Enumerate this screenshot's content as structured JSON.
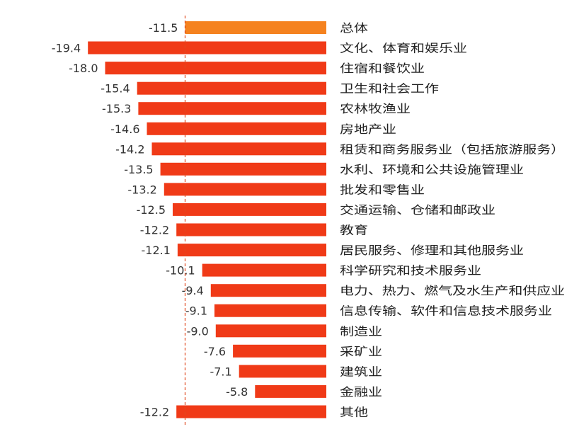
{
  "chart_data": {
    "type": "bar",
    "orientation": "horizontal",
    "xlim": [
      -20,
      0
    ],
    "grid": false,
    "legend": "none",
    "colors": {
      "highlight": "#f5821f",
      "default": "#f03a17",
      "axis_line": "#e0491e"
    },
    "categories": [
      "总体",
      "文化、体育和娱乐业",
      "住宿和餐饮业",
      "卫生和社会工作",
      "农林牧渔业",
      "房地产业",
      "租赁和商务服务业（包括旅游服务）",
      "水利、环境和公共设施管理业",
      "批发和零售业",
      "交通运输、仓储和邮政业",
      "教育",
      "居民服务、修理和其他服务业",
      "科学研究和技术服务业",
      "电力、热力、燃气及水生产和供应业",
      "信息传输、软件和信息技术服务业",
      "制造业",
      "采矿业",
      "建筑业",
      "金融业",
      "其他"
    ],
    "values": [
      -11.5,
      -19.4,
      -18.0,
      -15.4,
      -15.3,
      -14.6,
      -14.2,
      -13.5,
      -13.2,
      -12.5,
      -12.2,
      -12.1,
      -10.1,
      -9.4,
      -9.1,
      -9.0,
      -7.6,
      -7.1,
      -5.8,
      -12.2
    ],
    "value_labels": [
      "-11.5",
      "-19.4",
      "-18.0",
      "-15.4",
      "-15.3",
      "-14.6",
      "-14.2",
      "-13.5",
      "-13.2",
      "-12.5",
      "-12.2",
      "-12.1",
      "-10.1",
      "-9.4",
      "-9.1",
      "-9.0",
      "-7.6",
      "-7.1",
      "-5.8",
      "-12.2"
    ],
    "highlight_index": 0,
    "reference_line": {
      "value": -11.5,
      "style": "dashed"
    }
  }
}
